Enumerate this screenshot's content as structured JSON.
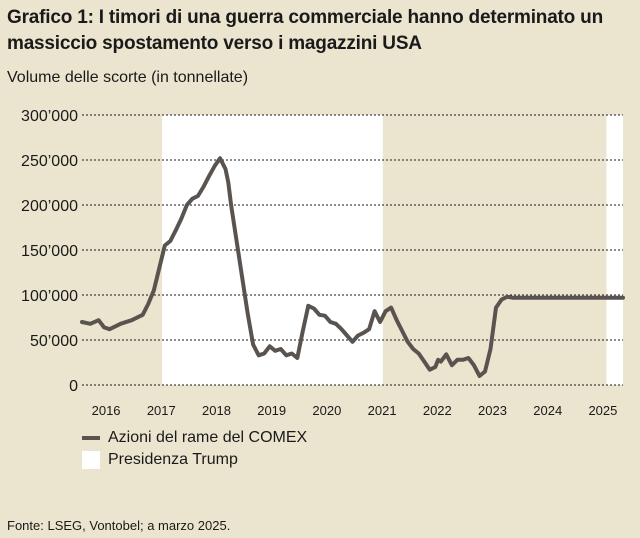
{
  "title": "Grafico 1: I timori di una guerra commerciale hanno determinato un massiccio spostamento verso i magazzini USA",
  "subtitle": "Volume delle scorte (in tonnellate)",
  "source": "Fonte: LSEG, Vontobel; a marzo 2025.",
  "legend": [
    {
      "label": "Azioni del rame del COMEX"
    },
    {
      "label": "Presidenza Trump"
    }
  ],
  "colors": {
    "background": "#ebe5cf",
    "line": "#5a5450",
    "highlight": "#ffffff"
  },
  "chart_data": {
    "type": "line",
    "title": "Grafico 1: I timori di una guerra commerciale hanno determinato un massiccio spostamento verso i magazzini USA",
    "ylabel": "Volume delle scorte (in tonnellate)",
    "xlim": [
      2015.6,
      2025.4
    ],
    "ylim": [
      0,
      300000
    ],
    "y_ticks": [
      0,
      50000,
      100000,
      150000,
      200000,
      250000,
      300000
    ],
    "y_tick_labels": [
      "0",
      "50’000",
      "100’000",
      "150’000",
      "200’000",
      "250’000",
      "300’000"
    ],
    "x_ticks": [
      2016,
      2017,
      2018,
      2019,
      2020,
      2021,
      2022,
      2023,
      2024,
      2025
    ],
    "x_tick_labels": [
      "2016",
      "2017",
      "2018",
      "2019",
      "2020",
      "2021",
      "2022",
      "2023",
      "2024",
      "2025"
    ],
    "grid": "horizontal",
    "legend_position": "bottom-left",
    "shaded_periods": [
      {
        "label": "Presidenza Trump",
        "start": 2017.05,
        "end": 2021.05
      },
      {
        "label": "Presidenza Trump",
        "start": 2025.1,
        "end": 2025.4
      }
    ],
    "series": [
      {
        "name": "Azioni del rame del COMEX",
        "x": [
          2015.6,
          2015.75,
          2015.9,
          2016.0,
          2016.1,
          2016.3,
          2016.5,
          2016.7,
          2016.8,
          2016.9,
          2017.0,
          2017.1,
          2017.2,
          2017.3,
          2017.4,
          2017.5,
          2017.6,
          2017.7,
          2017.8,
          2017.9,
          2018.0,
          2018.1,
          2018.2,
          2018.25,
          2018.3,
          2018.4,
          2018.5,
          2018.6,
          2018.7,
          2018.8,
          2018.9,
          2019.0,
          2019.1,
          2019.2,
          2019.3,
          2019.4,
          2019.5,
          2019.6,
          2019.7,
          2019.8,
          2019.9,
          2020.0,
          2020.1,
          2020.2,
          2020.3,
          2020.4,
          2020.5,
          2020.6,
          2020.7,
          2020.8,
          2020.9,
          2021.0,
          2021.1,
          2021.2,
          2021.3,
          2021.4,
          2021.5,
          2021.6,
          2021.7,
          2021.8,
          2021.9,
          2022.0,
          2022.05,
          2022.1,
          2022.2,
          2022.3,
          2022.4,
          2022.5,
          2022.6,
          2022.7,
          2022.8,
          2022.9,
          2023.0,
          2023.1,
          2023.2,
          2023.3,
          2023.4,
          2023.5,
          2023.6,
          2023.7,
          2023.8,
          2023.9,
          2024.0,
          2024.1,
          2024.2,
          2024.3,
          2024.4,
          2024.5,
          2024.6,
          2024.7,
          2024.8,
          2024.9,
          2025.0,
          2025.1,
          2025.2,
          2025.3,
          2025.4
        ],
        "values": [
          70000,
          68000,
          72000,
          64000,
          62000,
          68000,
          72000,
          78000,
          90000,
          105000,
          130000,
          155000,
          160000,
          172000,
          185000,
          200000,
          207000,
          210000,
          220000,
          232000,
          243000,
          252000,
          240000,
          225000,
          200000,
          160000,
          120000,
          80000,
          45000,
          33000,
          35000,
          43000,
          38000,
          40000,
          33000,
          35000,
          30000,
          60000,
          88000,
          85000,
          78000,
          77000,
          70000,
          68000,
          62000,
          55000,
          48000,
          55000,
          58000,
          62000,
          82000,
          70000,
          82000,
          86000,
          72000,
          60000,
          48000,
          40000,
          35000,
          26000,
          17000,
          20000,
          28000,
          26000,
          34000,
          22000,
          28000,
          28000,
          30000,
          22000,
          10000,
          15000,
          40000,
          86000,
          95000,
          98000,
          97000,
          97000,
          97000,
          97000,
          97000,
          97000,
          97000,
          97000,
          97000,
          97000,
          97000,
          97000,
          97000,
          97000,
          97000,
          97000,
          97000,
          97000,
          97000,
          97000,
          97000
        ]
      }
    ]
  }
}
